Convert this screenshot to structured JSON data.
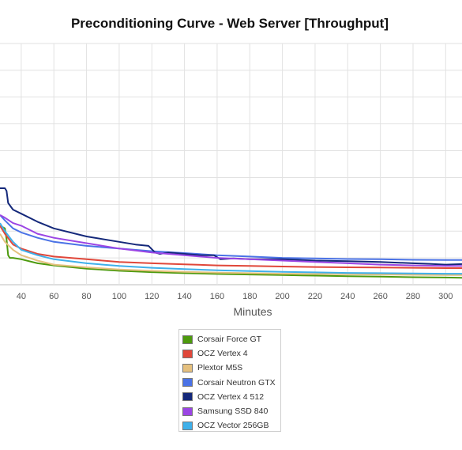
{
  "chart_data": {
    "type": "line",
    "title": "Preconditioning Curve - Web Server [Throughput]",
    "xlabel": "Minutes",
    "ylabel": "",
    "xlim": [
      27,
      310
    ],
    "ylim": [
      0,
      9
    ],
    "x_ticks": [
      40,
      60,
      80,
      100,
      120,
      140,
      160,
      180,
      200,
      220,
      240,
      260,
      280,
      300
    ],
    "grid": true,
    "legend_position": "bottom",
    "series": [
      {
        "name": "Corsair Force GT",
        "color": "#4d9a0e",
        "points": [
          [
            27,
            2.2
          ],
          [
            30,
            2.1
          ],
          [
            31,
            1.7
          ],
          [
            32,
            1.1
          ],
          [
            33,
            1.0
          ],
          [
            35,
            1.0
          ],
          [
            40,
            0.95
          ],
          [
            50,
            0.8
          ],
          [
            60,
            0.72
          ],
          [
            80,
            0.6
          ],
          [
            100,
            0.52
          ],
          [
            120,
            0.47
          ],
          [
            140,
            0.43
          ],
          [
            160,
            0.4
          ],
          [
            180,
            0.38
          ],
          [
            200,
            0.36
          ],
          [
            220,
            0.34
          ],
          [
            240,
            0.32
          ],
          [
            260,
            0.3
          ],
          [
            280,
            0.28
          ],
          [
            300,
            0.27
          ],
          [
            310,
            0.26
          ]
        ]
      },
      {
        "name": "OCZ Vertex 4",
        "color": "#e0473a",
        "points": [
          [
            27,
            2.2
          ],
          [
            30,
            1.9
          ],
          [
            35,
            1.5
          ],
          [
            40,
            1.35
          ],
          [
            50,
            1.15
          ],
          [
            60,
            1.05
          ],
          [
            80,
            0.95
          ],
          [
            100,
            0.85
          ],
          [
            120,
            0.8
          ],
          [
            140,
            0.76
          ],
          [
            160,
            0.72
          ],
          [
            180,
            0.7
          ],
          [
            200,
            0.68
          ],
          [
            220,
            0.66
          ],
          [
            240,
            0.65
          ],
          [
            260,
            0.64
          ],
          [
            280,
            0.63
          ],
          [
            300,
            0.62
          ],
          [
            310,
            0.62
          ]
        ]
      },
      {
        "name": "Plextor M5S",
        "color": "#e5c07e",
        "points": [
          [
            27,
            1.9
          ],
          [
            30,
            1.6
          ],
          [
            35,
            1.3
          ],
          [
            40,
            1.1
          ],
          [
            50,
            0.9
          ],
          [
            60,
            0.75
          ],
          [
            80,
            0.65
          ],
          [
            100,
            0.57
          ],
          [
            120,
            0.52
          ],
          [
            140,
            0.48
          ],
          [
            160,
            0.45
          ],
          [
            180,
            0.43
          ],
          [
            200,
            0.41
          ],
          [
            220,
            0.4
          ],
          [
            240,
            0.39
          ],
          [
            260,
            0.38
          ],
          [
            280,
            0.37
          ],
          [
            300,
            0.36
          ],
          [
            310,
            0.36
          ]
        ]
      },
      {
        "name": "Corsair Neutron GTX",
        "color": "#4a72e6",
        "points": [
          [
            27,
            2.6
          ],
          [
            30,
            2.4
          ],
          [
            35,
            2.1
          ],
          [
            40,
            1.95
          ],
          [
            50,
            1.75
          ],
          [
            60,
            1.6
          ],
          [
            80,
            1.45
          ],
          [
            100,
            1.35
          ],
          [
            120,
            1.25
          ],
          [
            140,
            1.18
          ],
          [
            160,
            1.1
          ],
          [
            180,
            1.05
          ],
          [
            200,
            1.0
          ],
          [
            220,
            0.98
          ],
          [
            240,
            0.96
          ],
          [
            260,
            0.95
          ],
          [
            280,
            0.93
          ],
          [
            300,
            0.92
          ],
          [
            310,
            0.92
          ]
        ]
      },
      {
        "name": "OCZ Vertex 4 512",
        "color": "#14287a",
        "points": [
          [
            27,
            3.6
          ],
          [
            30,
            3.6
          ],
          [
            31,
            3.5
          ],
          [
            32,
            3.05
          ],
          [
            35,
            2.8
          ],
          [
            40,
            2.65
          ],
          [
            50,
            2.35
          ],
          [
            60,
            2.1
          ],
          [
            80,
            1.8
          ],
          [
            100,
            1.6
          ],
          [
            110,
            1.5
          ],
          [
            118,
            1.45
          ],
          [
            122,
            1.2
          ],
          [
            125,
            1.15
          ],
          [
            130,
            1.2
          ],
          [
            140,
            1.15
          ],
          [
            150,
            1.1
          ],
          [
            158,
            1.1
          ],
          [
            162,
            0.95
          ],
          [
            170,
            0.98
          ],
          [
            180,
            0.95
          ],
          [
            200,
            0.95
          ],
          [
            220,
            0.9
          ],
          [
            240,
            0.88
          ],
          [
            260,
            0.85
          ],
          [
            280,
            0.8
          ],
          [
            290,
            0.78
          ],
          [
            300,
            0.75
          ],
          [
            310,
            0.77
          ]
        ]
      },
      {
        "name": "Samsung SSD 840",
        "color": "#9b45e4",
        "points": [
          [
            27,
            2.6
          ],
          [
            30,
            2.5
          ],
          [
            35,
            2.3
          ],
          [
            40,
            2.2
          ],
          [
            50,
            1.9
          ],
          [
            60,
            1.75
          ],
          [
            80,
            1.55
          ],
          [
            100,
            1.35
          ],
          [
            120,
            1.2
          ],
          [
            140,
            1.1
          ],
          [
            160,
            1.0
          ],
          [
            180,
            0.95
          ],
          [
            200,
            0.9
          ],
          [
            220,
            0.85
          ],
          [
            240,
            0.8
          ],
          [
            260,
            0.75
          ],
          [
            280,
            0.72
          ],
          [
            300,
            0.7
          ],
          [
            310,
            0.7
          ]
        ]
      },
      {
        "name": "OCZ Vector 256GB",
        "color": "#3fb0ea",
        "points": [
          [
            27,
            2.3
          ],
          [
            30,
            2.0
          ],
          [
            35,
            1.6
          ],
          [
            40,
            1.3
          ],
          [
            50,
            1.1
          ],
          [
            60,
            0.95
          ],
          [
            80,
            0.8
          ],
          [
            100,
            0.7
          ],
          [
            120,
            0.63
          ],
          [
            140,
            0.58
          ],
          [
            160,
            0.54
          ],
          [
            180,
            0.51
          ],
          [
            200,
            0.48
          ],
          [
            220,
            0.46
          ],
          [
            240,
            0.44
          ],
          [
            260,
            0.43
          ],
          [
            280,
            0.42
          ],
          [
            300,
            0.41
          ],
          [
            310,
            0.41
          ]
        ]
      }
    ]
  }
}
